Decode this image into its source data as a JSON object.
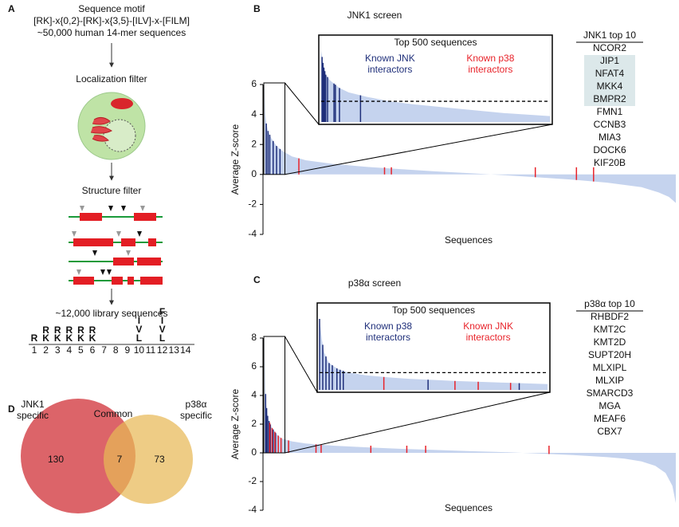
{
  "panel_a": {
    "label": "A",
    "motif_title": "Sequence motif",
    "motif": "[RK]-x{0,2}-[RK]-x{3,5}-[ILV]-x-[FILM]",
    "motif_source": "~50,000 human 14-mer sequences",
    "localization": "Localization filter",
    "structure": "Structure filter",
    "library": "~12,000 library sequences",
    "logo": {
      "positions": [
        "1",
        "2",
        "3",
        "4",
        "5",
        "6",
        "7",
        "8",
        "9",
        "10",
        "11",
        "12",
        "13",
        "14"
      ],
      "letters": [
        [
          "R"
        ],
        [
          "R",
          "K"
        ],
        [
          "R",
          "K"
        ],
        [
          "R",
          "K"
        ],
        [
          "R",
          "K"
        ],
        [
          "R",
          "K"
        ],
        [],
        [],
        [],
        [
          "I",
          "V",
          "L"
        ],
        [],
        [
          "F",
          "I",
          "V",
          "L"
        ],
        [],
        []
      ]
    }
  },
  "chart_data": [
    {
      "type": "area",
      "panel": "B",
      "title": "JNK1 screen",
      "ylabel": "Average Z-score",
      "xlabel": "Sequences",
      "color": "#c5d3ee",
      "xlim": [
        0,
        12000
      ],
      "ylim": [
        -4,
        6
      ],
      "yticks": [
        -4,
        -2,
        0,
        2,
        4,
        6
      ],
      "x": [
        0,
        20,
        50,
        100,
        200,
        350,
        500,
        800,
        1200,
        2000,
        3000,
        4000,
        5000,
        6000,
        7000,
        8000,
        9000,
        10000,
        11000,
        11500,
        11800,
        12000
      ],
      "values": [
        6,
        4,
        3.4,
        2.9,
        2.4,
        1.9,
        1.6,
        1.2,
        0.95,
        0.7,
        0.5,
        0.35,
        0.2,
        0.08,
        -0.05,
        -0.2,
        -0.35,
        -0.55,
        -0.85,
        -1.2,
        -1.5,
        -1.9
      ],
      "series": [
        {
          "name": "Known JNK interactors",
          "color": "#1f2f7a",
          "x": [
            50,
            100,
            150,
            250,
            350,
            450
          ]
        },
        {
          "name": "Known p38 interactors",
          "color": "#e8232a",
          "x": [
            1000,
            3500,
            3700,
            7900,
            9100,
            9600
          ]
        }
      ],
      "inset": {
        "title": "Top 500 sequences",
        "xlim": [
          0,
          500
        ],
        "ylim": [
          1.2,
          6
        ],
        "x": [
          0,
          5,
          10,
          20,
          40,
          60,
          100,
          150,
          200,
          300,
          400,
          500
        ],
        "values": [
          6,
          5,
          4.4,
          4,
          3.5,
          3.2,
          2.9,
          2.6,
          2.4,
          2.1,
          1.8,
          1.6
        ],
        "threshold": 2.6,
        "marks": [
          [
            2,
            4,
            6,
            8,
            10,
            14,
            28,
            31,
            40,
            86
          ],
          []
        ]
      },
      "top10": {
        "title": "JNK1 top 10",
        "items": [
          "NCOR2",
          "JIP1",
          "NFAT4",
          "MKK4",
          "BMPR2",
          "FMN1",
          "CCNB3",
          "MIA3",
          "DOCK6",
          "KIF20B"
        ],
        "highlighted": [
          false,
          true,
          true,
          true,
          true,
          false,
          false,
          false,
          false,
          false
        ]
      }
    },
    {
      "type": "area",
      "panel": "C",
      "title": "p38α screen",
      "ylabel": "Average Z-score",
      "xlabel": "Sequences",
      "color": "#c5d3ee",
      "xlim": [
        0,
        12000
      ],
      "ylim": [
        -4,
        8
      ],
      "yticks": [
        -4,
        -2,
        0,
        2,
        4,
        6,
        8
      ],
      "x": [
        0,
        20,
        50,
        100,
        200,
        350,
        500,
        800,
        1200,
        2000,
        3000,
        4000,
        5000,
        6000,
        7000,
        8000,
        9000,
        10000,
        10500,
        11000,
        11400,
        11700,
        11900,
        12000
      ],
      "values": [
        8,
        4.5,
        3.3,
        2.4,
        1.8,
        1.3,
        1,
        0.8,
        0.65,
        0.5,
        0.38,
        0.28,
        0.2,
        0.12,
        0.05,
        -0.05,
        -0.15,
        -0.3,
        -0.4,
        -0.6,
        -0.9,
        -1.4,
        -2.3,
        -3.5
      ],
      "series": [
        {
          "name": "Known p38 interactors",
          "color": "#1f2f7a",
          "x": [
            30,
            60,
            90,
            130,
            170,
            250,
            320
          ]
        },
        {
          "name": "Known JNK interactors",
          "color": "#e8232a",
          "x": [
            150,
            220,
            300,
            400,
            480,
            700,
            1500,
            1650,
            3100,
            4150,
            4700,
            8300
          ]
        }
      ],
      "inset": {
        "title": "Top 500 sequences",
        "xlim": [
          0,
          500
        ],
        "ylim": [
          1.2,
          8
        ],
        "x": [
          0,
          5,
          10,
          20,
          40,
          60,
          100,
          150,
          200,
          300,
          400,
          500
        ],
        "values": [
          8,
          6,
          4.8,
          3.8,
          3.2,
          2.9,
          2.6,
          2.4,
          2.25,
          2.05,
          1.9,
          1.75
        ],
        "threshold": 2.85,
        "marks": [
          [
            0,
            7,
            14,
            21,
            28,
            38,
            45,
            52,
            238,
            438
          ],
          [
            141,
            297,
            348,
            419
          ]
        ]
      },
      "top10": {
        "title": "p38α top 10",
        "items": [
          "RHBDF2",
          "KMT2C",
          "KMT2D",
          "SUPT20H",
          "MLXIPL",
          "MLXIP",
          "SMARCD3",
          "MGA",
          "MEAF6",
          "CBX7"
        ]
      }
    }
  ],
  "venn": {
    "label": "D",
    "left_label": "JNK1 specific",
    "common_label": "Common",
    "right_label": "p38α specific",
    "left": 130,
    "common": 7,
    "right": 73
  }
}
